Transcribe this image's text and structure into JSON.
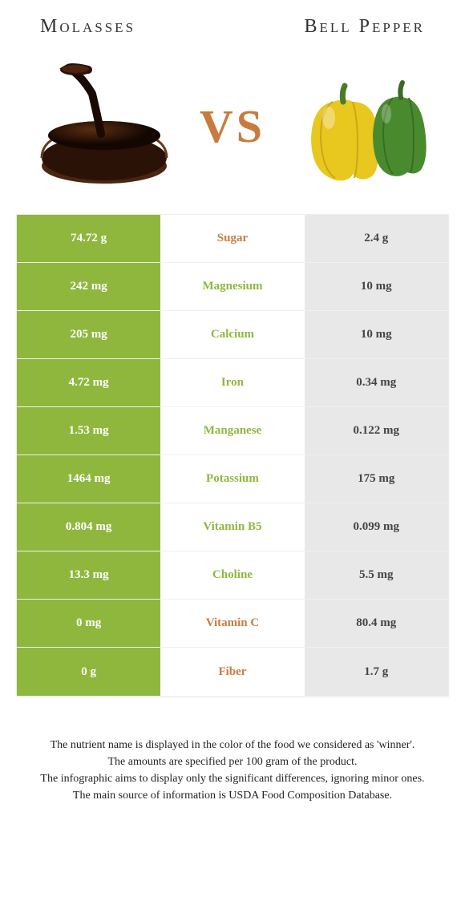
{
  "left_title": "Molasses",
  "right_title": "Bell Pepper",
  "vs": "VS",
  "colors": {
    "left_winner_bg": "#8fb73e",
    "right_bg": "#e8e8e8",
    "nutrient_left_winner": "#8fb73e",
    "nutrient_right_winner": "#c97b3f",
    "vs_color": "#c97b3f",
    "row_border": "#f0f0f0"
  },
  "rows": [
    {
      "nutrient": "Sugar",
      "left": "74.72 g",
      "right": "2.4 g",
      "winner": "right"
    },
    {
      "nutrient": "Magnesium",
      "left": "242 mg",
      "right": "10 mg",
      "winner": "left"
    },
    {
      "nutrient": "Calcium",
      "left": "205 mg",
      "right": "10 mg",
      "winner": "left"
    },
    {
      "nutrient": "Iron",
      "left": "4.72 mg",
      "right": "0.34 mg",
      "winner": "left"
    },
    {
      "nutrient": "Manganese",
      "left": "1.53 mg",
      "right": "0.122 mg",
      "winner": "left"
    },
    {
      "nutrient": "Potassium",
      "left": "1464 mg",
      "right": "175 mg",
      "winner": "left"
    },
    {
      "nutrient": "Vitamin B5",
      "left": "0.804 mg",
      "right": "0.099 mg",
      "winner": "left"
    },
    {
      "nutrient": "Choline",
      "left": "13.3 mg",
      "right": "5.5 mg",
      "winner": "left"
    },
    {
      "nutrient": "Vitamin C",
      "left": "0 mg",
      "right": "80.4 mg",
      "winner": "right"
    },
    {
      "nutrient": "Fiber",
      "left": "0 g",
      "right": "1.7 g",
      "winner": "right"
    }
  ],
  "footer": {
    "line1": "The nutrient name is displayed in the color of the food we considered as 'winner'.",
    "line2": "The amounts are specified per 100 gram of the product.",
    "line3": "The infographic aims to display only the significant differences, ignoring minor ones.",
    "line4": "The main source of information is USDA Food Composition Database."
  }
}
